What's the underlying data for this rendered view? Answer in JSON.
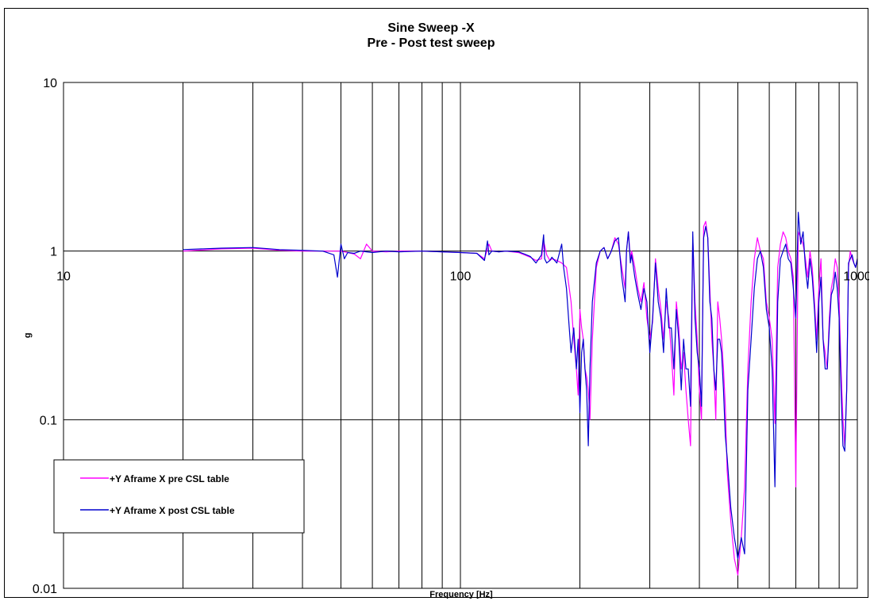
{
  "chart_data": {
    "type": "line",
    "title": "Sine Sweep -X",
    "subtitle": "Pre - Post test sweep",
    "xlabel": "Frequency [Hz]",
    "ylabel": "g",
    "x_scale": "log",
    "y_scale": "log",
    "xlim": [
      10,
      1000
    ],
    "ylim": [
      0.01,
      10
    ],
    "x_ticks": [
      "10",
      "100",
      "1000"
    ],
    "y_ticks": [
      "0.01",
      "0.1",
      "1",
      "10"
    ],
    "grid": true,
    "legend_position": "lower-left",
    "series": [
      {
        "name": "+Y Aframe X pre CSL table",
        "color": "#ff00ff",
        "x": [
          20,
          25,
          30,
          35,
          40,
          45,
          48,
          50,
          52,
          54,
          56,
          58,
          60,
          65,
          70,
          80,
          90,
          100,
          110,
          115,
          118,
          120,
          125,
          130,
          140,
          145,
          150,
          155,
          160,
          162,
          165,
          168,
          170,
          175,
          180,
          185,
          190,
          193,
          196,
          198,
          200,
          202,
          204,
          206,
          208,
          210,
          212,
          215,
          220,
          225,
          230,
          235,
          240,
          245,
          250,
          255,
          260,
          262,
          265,
          268,
          270,
          275,
          280,
          285,
          290,
          295,
          300,
          305,
          310,
          315,
          320,
          325,
          330,
          335,
          340,
          345,
          350,
          355,
          360,
          365,
          370,
          375,
          380,
          385,
          390,
          395,
          400,
          405,
          410,
          415,
          420,
          425,
          430,
          435,
          440,
          445,
          450,
          455,
          460,
          465,
          470,
          480,
          490,
          500,
          510,
          520,
          530,
          540,
          550,
          560,
          570,
          580,
          590,
          600,
          610,
          620,
          630,
          640,
          650,
          660,
          670,
          680,
          690,
          700,
          710,
          720,
          730,
          740,
          750,
          760,
          770,
          780,
          790,
          800,
          810,
          820,
          830,
          840,
          850,
          860,
          870,
          880,
          890,
          900,
          910,
          920,
          930,
          940,
          950,
          960,
          970,
          980,
          990,
          1000
        ],
        "y": [
          1.0,
          1.03,
          1.04,
          1.01,
          1.0,
          1.0,
          1.0,
          1.0,
          0.98,
          0.96,
          0.9,
          1.1,
          1.0,
          0.99,
          1.0,
          1.0,
          0.99,
          0.98,
          0.97,
          0.9,
          1.1,
          1.0,
          0.99,
          1.0,
          0.98,
          0.95,
          0.92,
          0.88,
          0.9,
          1.15,
          0.95,
          0.88,
          0.9,
          0.88,
          0.85,
          0.8,
          0.5,
          0.3,
          0.2,
          0.14,
          0.45,
          0.35,
          0.3,
          0.2,
          0.18,
          0.15,
          0.1,
          0.3,
          0.8,
          1.0,
          1.05,
          0.9,
          1.0,
          1.2,
          1.1,
          0.8,
          0.6,
          1.0,
          1.3,
          0.9,
          1.0,
          0.8,
          0.6,
          0.5,
          0.65,
          0.4,
          0.3,
          0.38,
          0.9,
          0.6,
          0.45,
          0.3,
          0.5,
          0.4,
          0.25,
          0.14,
          0.5,
          0.35,
          0.2,
          0.25,
          0.15,
          0.1,
          0.07,
          1.2,
          0.5,
          0.3,
          0.15,
          0.1,
          1.4,
          1.5,
          1.2,
          0.6,
          0.3,
          0.2,
          0.1,
          0.5,
          0.4,
          0.3,
          0.2,
          0.12,
          0.05,
          0.025,
          0.015,
          0.012,
          0.02,
          0.04,
          0.2,
          0.5,
          0.9,
          1.2,
          1.0,
          0.9,
          0.5,
          0.4,
          0.3,
          0.095,
          0.8,
          1.1,
          1.3,
          1.2,
          1.0,
          0.9,
          0.7,
          0.04,
          1.3,
          1.2,
          1.1,
          0.9,
          0.7,
          1.0,
          0.8,
          0.5,
          0.3,
          0.6,
          0.9,
          0.3,
          0.25,
          0.2,
          0.4,
          0.6,
          0.7,
          0.9,
          0.8,
          0.5,
          0.2,
          0.1,
          0.07,
          0.15,
          0.8,
          1.0,
          0.9,
          0.85,
          0.8,
          0.9
        ]
      },
      {
        "name": "+Y Aframe X post CSL table",
        "color": "#0000cd",
        "x": [
          20,
          25,
          30,
          35,
          40,
          45,
          48,
          49,
          50,
          51,
          52,
          54,
          56,
          58,
          60,
          65,
          70,
          80,
          90,
          100,
          110,
          115,
          117,
          118,
          120,
          125,
          130,
          140,
          145,
          150,
          155,
          160,
          162,
          163,
          165,
          168,
          170,
          175,
          180,
          182,
          185,
          188,
          190,
          193,
          196,
          198,
          200,
          202,
          204,
          206,
          208,
          210,
          212,
          215,
          220,
          225,
          230,
          235,
          240,
          245,
          250,
          255,
          260,
          262,
          265,
          268,
          270,
          275,
          280,
          285,
          290,
          295,
          300,
          305,
          310,
          315,
          320,
          325,
          330,
          335,
          340,
          345,
          350,
          355,
          360,
          365,
          370,
          375,
          380,
          385,
          390,
          395,
          400,
          405,
          410,
          415,
          420,
          425,
          430,
          435,
          440,
          445,
          450,
          455,
          460,
          465,
          470,
          480,
          490,
          500,
          510,
          520,
          530,
          540,
          550,
          560,
          570,
          580,
          590,
          600,
          610,
          620,
          630,
          640,
          650,
          660,
          670,
          680,
          690,
          700,
          710,
          720,
          730,
          740,
          750,
          760,
          770,
          780,
          790,
          800,
          810,
          820,
          830,
          840,
          850,
          860,
          870,
          880,
          890,
          900,
          910,
          920,
          930,
          940,
          950,
          960,
          970,
          980,
          990,
          1000
        ],
        "y": [
          1.02,
          1.04,
          1.05,
          1.02,
          1.01,
          1.0,
          0.95,
          0.7,
          1.1,
          0.9,
          0.98,
          0.97,
          1.0,
          0.99,
          0.98,
          1.0,
          0.99,
          1.0,
          0.99,
          0.98,
          0.97,
          0.88,
          1.15,
          0.95,
          1.0,
          0.99,
          1.0,
          0.99,
          0.96,
          0.93,
          0.85,
          0.95,
          1.25,
          0.9,
          0.85,
          0.88,
          0.92,
          0.85,
          1.1,
          0.8,
          0.6,
          0.35,
          0.25,
          0.35,
          0.2,
          0.3,
          0.11,
          0.25,
          0.3,
          0.2,
          0.15,
          0.07,
          0.2,
          0.5,
          0.85,
          1.0,
          1.05,
          0.9,
          1.0,
          1.15,
          1.2,
          0.7,
          0.5,
          1.0,
          1.3,
          0.85,
          0.95,
          0.7,
          0.55,
          0.45,
          0.6,
          0.5,
          0.25,
          0.4,
          0.85,
          0.5,
          0.4,
          0.25,
          0.6,
          0.35,
          0.35,
          0.2,
          0.45,
          0.3,
          0.15,
          0.3,
          0.2,
          0.2,
          0.12,
          1.3,
          0.4,
          0.25,
          0.2,
          0.12,
          1.2,
          1.4,
          1.2,
          0.5,
          0.4,
          0.2,
          0.15,
          0.3,
          0.3,
          0.25,
          0.15,
          0.08,
          0.06,
          0.03,
          0.02,
          0.015,
          0.02,
          0.016,
          0.15,
          0.3,
          0.6,
          0.9,
          1.0,
          0.8,
          0.45,
          0.35,
          0.2,
          0.04,
          0.5,
          0.9,
          1.0,
          1.1,
          0.9,
          0.85,
          0.6,
          0.4,
          1.7,
          1.1,
          1.3,
          0.8,
          0.6,
          0.9,
          0.7,
          0.45,
          0.25,
          0.5,
          0.7,
          0.3,
          0.2,
          0.2,
          0.35,
          0.55,
          0.6,
          0.75,
          0.6,
          0.4,
          0.15,
          0.07,
          0.065,
          0.15,
          0.85,
          0.9,
          0.95,
          0.85,
          0.8,
          0.9
        ]
      }
    ]
  }
}
